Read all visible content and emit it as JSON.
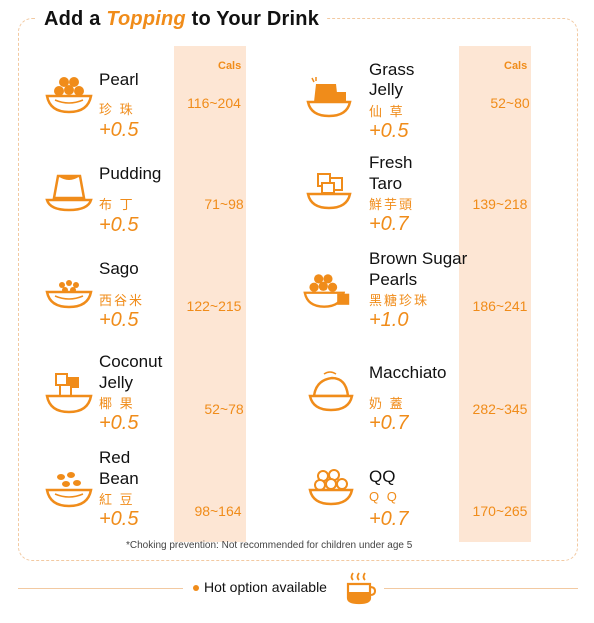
{
  "title": {
    "prefix": "Add a ",
    "accent": "Topping",
    "suffix": " to Your Drink"
  },
  "cals_header": "Cals",
  "left": [
    {
      "name_lines": [
        "Pearl"
      ],
      "cn": "珍 珠",
      "price": "+0.5",
      "cals": "116~204",
      "icon": "pearl-bowl-icon"
    },
    {
      "name_lines": [
        "Pudding"
      ],
      "cn": "布 丁",
      "price": "+0.5",
      "cals": "71~98",
      "icon": "pudding-icon"
    },
    {
      "name_lines": [
        "Sago"
      ],
      "cn": "西谷米",
      "price": "+0.5",
      "cals": "122~215",
      "icon": "sago-bowl-icon"
    },
    {
      "name_lines": [
        "Coconut",
        "Jelly"
      ],
      "cn": "椰 果",
      "price": "+0.5",
      "cals": "52~78",
      "icon": "coconut-jelly-icon"
    },
    {
      "name_lines": [
        "Red",
        "Bean"
      ],
      "cn": "紅 豆",
      "price": "+0.5",
      "cals": "98~164",
      "icon": "red-bean-bowl-icon"
    }
  ],
  "right": [
    {
      "name_lines": [
        "Grass",
        "Jelly"
      ],
      "cn": "仙 草",
      "price": "+0.5",
      "cals": "52~80",
      "icon": "grass-jelly-icon"
    },
    {
      "name_lines": [
        "Fresh",
        "Taro"
      ],
      "cn": "鮮芋頭",
      "price": "+0.7",
      "cals": "139~218",
      "icon": "taro-bowl-icon"
    },
    {
      "name_lines": [
        "Brown Sugar",
        "Pearls"
      ],
      "cn": "黑糖珍珠",
      "price": "+1.0",
      "cals": "186~241",
      "icon": "brown-sugar-pearls-icon"
    },
    {
      "name_lines": [
        "Macchiato"
      ],
      "cn": "奶 蓋",
      "price": "+0.7",
      "cals": "282~345",
      "icon": "macchiato-cream-icon"
    },
    {
      "name_lines": [
        "QQ"
      ],
      "cn": "Q Q",
      "price": "+0.7",
      "cals": "170~265",
      "icon": "qq-bowl-icon"
    }
  ],
  "note": "*Choking prevention: Not recommended for children under age 5",
  "footer": {
    "text": "Hot option available",
    "icon": "hot-cup-icon"
  },
  "colors": {
    "accent": "#f08c1a",
    "cal_bg": "#fde6d4",
    "frame": "#f2c9a1"
  }
}
